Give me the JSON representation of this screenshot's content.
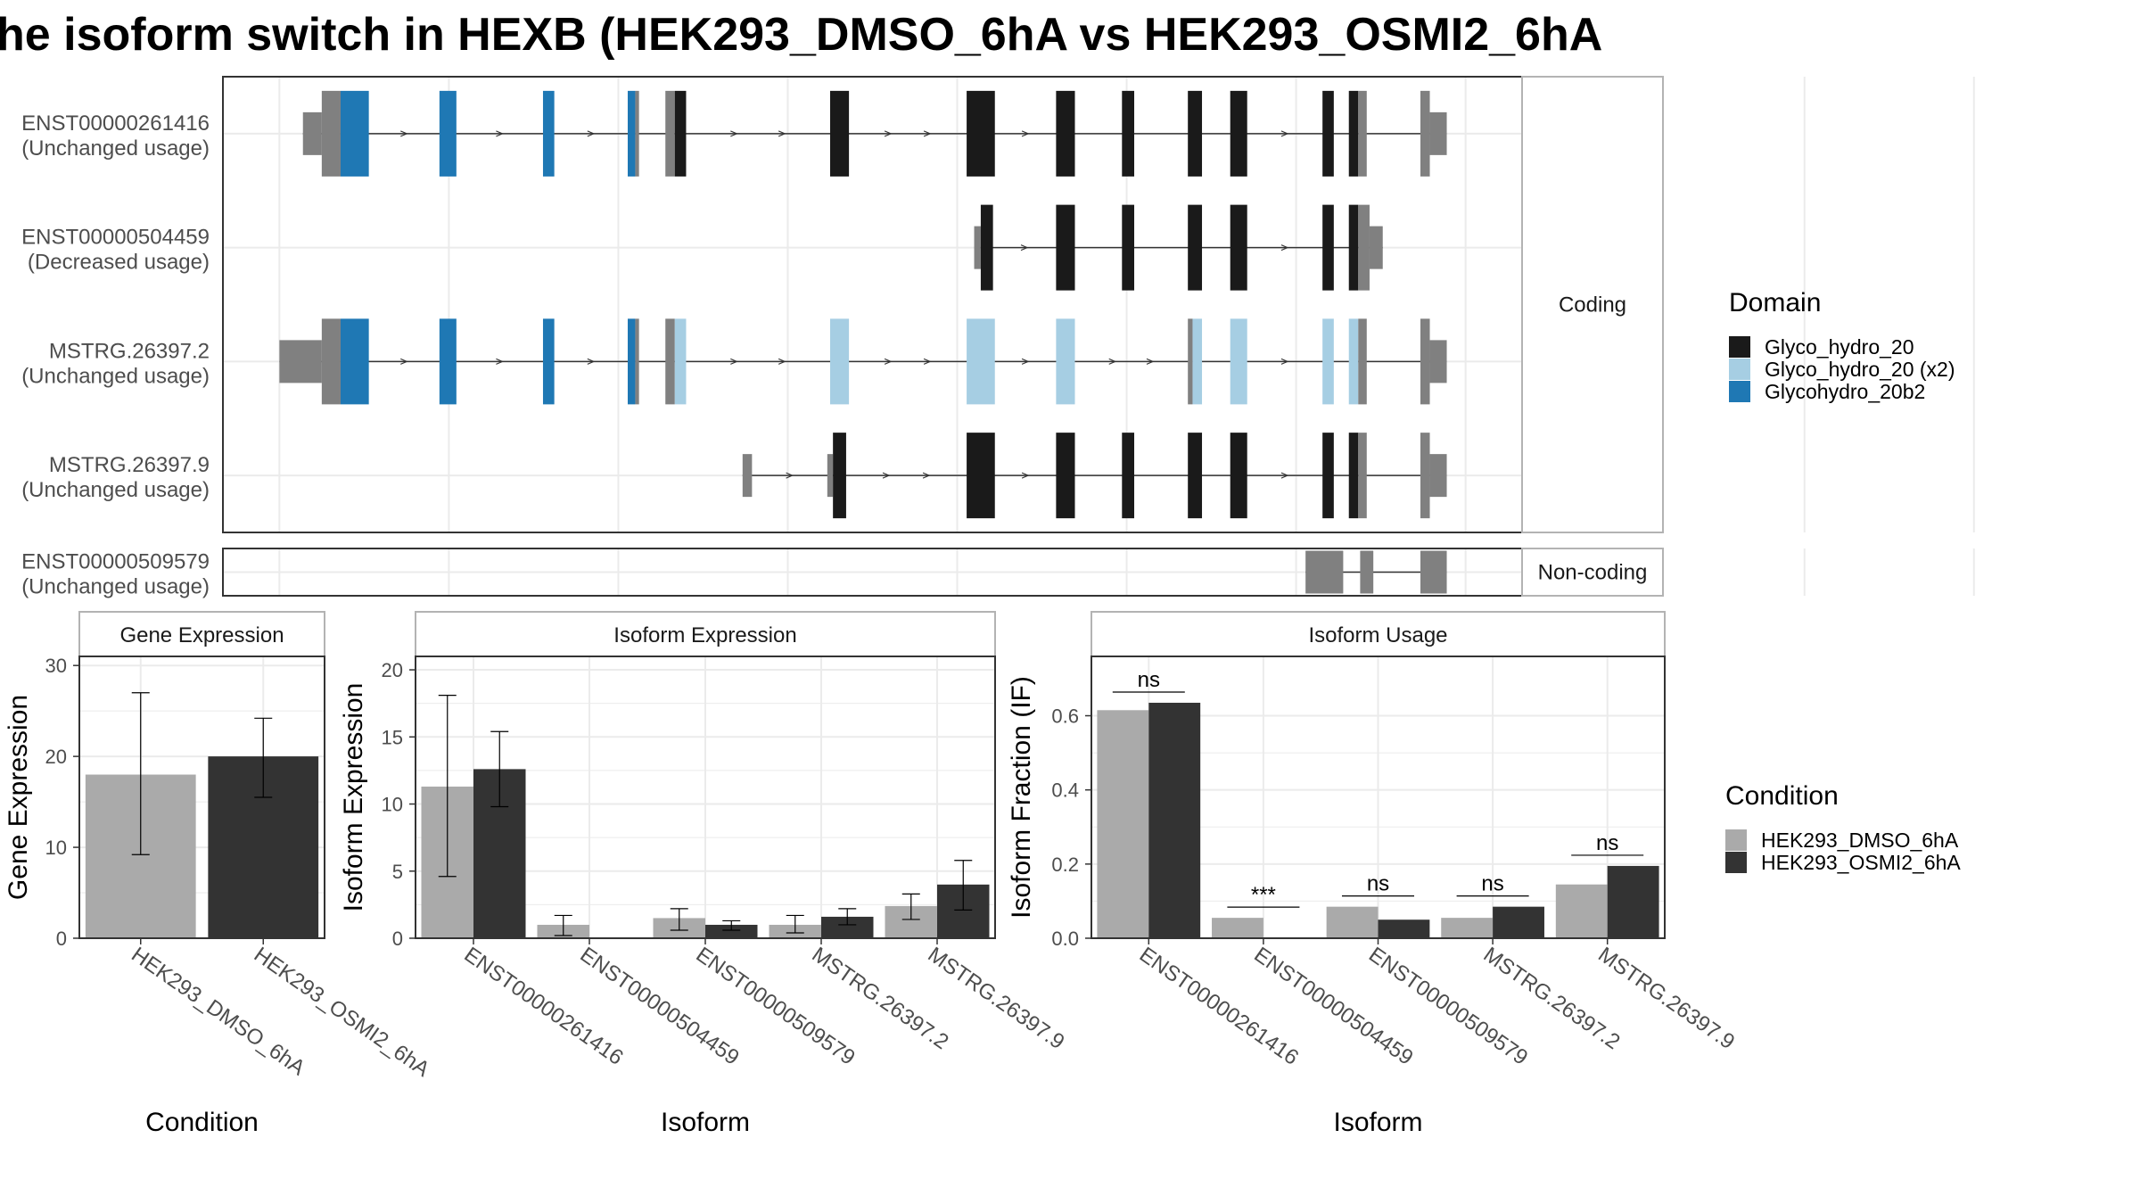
{
  "title": "he isoform switch in HEXB (HEK293_DMSO_6hA vs HEK293_OSMI2_6hA",
  "colors": {
    "glyco_hydro_20": "#1a1a1a",
    "glyco_hydro_20_x2": "#a6cee3",
    "glycohydro_20b2": "#1f78b4",
    "utr_exon": "#808080",
    "condition_dmso": "#aaaaaa",
    "condition_osmi2": "#333333",
    "grid": "#ebebeb",
    "panel_border": "#333333",
    "strip_border": "#b3b3b3",
    "intron": "#333333"
  },
  "structure": {
    "coding_label": "Coding",
    "noncoding_label": "Non-coding",
    "coordinate_breaks": [
      60,
      240,
      420,
      600,
      780,
      960,
      1140,
      1320,
      1500,
      1680,
      1860,
      2040
    ],
    "transcripts": [
      {
        "id": "ENST00000261416",
        "usage": "(Unchanged usage)",
        "group": "coding",
        "exons": [
          {
            "start": 85,
            "end": 105,
            "kind": "utr"
          },
          {
            "start": 105,
            "end": 125,
            "kind": "cds"
          },
          {
            "start": 125,
            "end": 155,
            "kind": "domain3"
          },
          {
            "start": 230,
            "end": 248,
            "kind": "domain3"
          },
          {
            "start": 340,
            "end": 352,
            "kind": "domain3"
          },
          {
            "start": 430,
            "end": 438,
            "kind": "domain3"
          },
          {
            "start": 438,
            "end": 442,
            "kind": "cds"
          },
          {
            "start": 470,
            "end": 480,
            "kind": "cds"
          },
          {
            "start": 480,
            "end": 492,
            "kind": "domain1"
          },
          {
            "start": 645,
            "end": 665,
            "kind": "domain1"
          },
          {
            "start": 790,
            "end": 820,
            "kind": "domain1"
          },
          {
            "start": 885,
            "end": 905,
            "kind": "domain1"
          },
          {
            "start": 955,
            "end": 968,
            "kind": "domain1"
          },
          {
            "start": 1025,
            "end": 1040,
            "kind": "domain1"
          },
          {
            "start": 1070,
            "end": 1088,
            "kind": "domain1"
          },
          {
            "start": 1168,
            "end": 1180,
            "kind": "domain1"
          },
          {
            "start": 1196,
            "end": 1206,
            "kind": "domain1"
          },
          {
            "start": 1206,
            "end": 1215,
            "kind": "cds"
          },
          {
            "start": 1272,
            "end": 1282,
            "kind": "cds"
          },
          {
            "start": 1282,
            "end": 1300,
            "kind": "utr"
          }
        ]
      },
      {
        "id": "ENST00000504459",
        "usage": "(Decreased usage)",
        "group": "coding",
        "exons": [
          {
            "start": 798,
            "end": 805,
            "kind": "utr"
          },
          {
            "start": 805,
            "end": 818,
            "kind": "domain1"
          },
          {
            "start": 885,
            "end": 905,
            "kind": "domain1"
          },
          {
            "start": 955,
            "end": 968,
            "kind": "domain1"
          },
          {
            "start": 1025,
            "end": 1040,
            "kind": "domain1"
          },
          {
            "start": 1070,
            "end": 1088,
            "kind": "domain1"
          },
          {
            "start": 1168,
            "end": 1180,
            "kind": "domain1"
          },
          {
            "start": 1196,
            "end": 1206,
            "kind": "domain1"
          },
          {
            "start": 1206,
            "end": 1218,
            "kind": "cds"
          },
          {
            "start": 1218,
            "end": 1232,
            "kind": "utr"
          }
        ]
      },
      {
        "id": "MSTRG.26397.2",
        "usage": "(Unchanged usage)",
        "group": "coding",
        "exons": [
          {
            "start": 60,
            "end": 105,
            "kind": "utr"
          },
          {
            "start": 105,
            "end": 125,
            "kind": "cds"
          },
          {
            "start": 125,
            "end": 155,
            "kind": "domain3"
          },
          {
            "start": 230,
            "end": 248,
            "kind": "domain3"
          },
          {
            "start": 340,
            "end": 352,
            "kind": "domain3"
          },
          {
            "start": 430,
            "end": 438,
            "kind": "domain3"
          },
          {
            "start": 438,
            "end": 442,
            "kind": "cds"
          },
          {
            "start": 470,
            "end": 480,
            "kind": "cds"
          },
          {
            "start": 480,
            "end": 492,
            "kind": "domain2"
          },
          {
            "start": 645,
            "end": 665,
            "kind": "domain2"
          },
          {
            "start": 790,
            "end": 820,
            "kind": "domain2"
          },
          {
            "start": 885,
            "end": 905,
            "kind": "domain2"
          },
          {
            "start": 1025,
            "end": 1030,
            "kind": "cds"
          },
          {
            "start": 1030,
            "end": 1040,
            "kind": "domain2"
          },
          {
            "start": 1070,
            "end": 1088,
            "kind": "domain2"
          },
          {
            "start": 1168,
            "end": 1180,
            "kind": "domain2"
          },
          {
            "start": 1196,
            "end": 1206,
            "kind": "domain2"
          },
          {
            "start": 1206,
            "end": 1215,
            "kind": "cds"
          },
          {
            "start": 1272,
            "end": 1282,
            "kind": "cds"
          },
          {
            "start": 1282,
            "end": 1300,
            "kind": "utr"
          }
        ]
      },
      {
        "id": "MSTRG.26397.9",
        "usage": "(Unchanged usage)",
        "group": "coding",
        "exons": [
          {
            "start": 552,
            "end": 562,
            "kind": "utr"
          },
          {
            "start": 642,
            "end": 648,
            "kind": "utr"
          },
          {
            "start": 648,
            "end": 662,
            "kind": "domain1"
          },
          {
            "start": 790,
            "end": 820,
            "kind": "domain1"
          },
          {
            "start": 885,
            "end": 905,
            "kind": "domain1"
          },
          {
            "start": 955,
            "end": 968,
            "kind": "domain1"
          },
          {
            "start": 1025,
            "end": 1040,
            "kind": "domain1"
          },
          {
            "start": 1070,
            "end": 1088,
            "kind": "domain1"
          },
          {
            "start": 1168,
            "end": 1180,
            "kind": "domain1"
          },
          {
            "start": 1196,
            "end": 1206,
            "kind": "domain1"
          },
          {
            "start": 1206,
            "end": 1215,
            "kind": "cds"
          },
          {
            "start": 1272,
            "end": 1282,
            "kind": "cds"
          },
          {
            "start": 1282,
            "end": 1300,
            "kind": "utr"
          }
        ]
      },
      {
        "id": "ENST00000509579",
        "usage": "(Unchanged usage)",
        "group": "noncoding",
        "exons": [
          {
            "start": 1150,
            "end": 1190,
            "kind": "utr"
          },
          {
            "start": 1208,
            "end": 1222,
            "kind": "utr"
          },
          {
            "start": 1272,
            "end": 1300,
            "kind": "utr"
          }
        ]
      }
    ]
  },
  "domain_legend": {
    "title": "Domain",
    "items": [
      {
        "label": "Glyco_hydro_20",
        "color": "#1a1a1a"
      },
      {
        "label": "Glyco_hydro_20 (x2)",
        "color": "#a6cee3"
      },
      {
        "label": "Glycohydro_20b2",
        "color": "#1f78b4"
      }
    ]
  },
  "condition_legend": {
    "title": "Condition",
    "items": [
      {
        "label": "HEK293_DMSO_6hA",
        "color": "#aaaaaa"
      },
      {
        "label": "HEK293_OSMI2_6hA",
        "color": "#333333"
      }
    ]
  },
  "chart_data": [
    {
      "type": "bar",
      "title": "Gene Expression",
      "xlabel": "Condition",
      "ylabel": "Gene Expression",
      "categories": [
        "HEK293_DMSO_6hA",
        "HEK293_OSMI2_6hA"
      ],
      "values": [
        18,
        20
      ],
      "errors": [
        [
          9.2,
          27
        ],
        [
          15.5,
          24.2
        ]
      ],
      "ylim": [
        0,
        31
      ],
      "yticks": [
        0,
        10,
        20,
        30
      ]
    },
    {
      "type": "bar",
      "title": "Isoform Expression",
      "xlabel": "Isoform",
      "ylabel": "Isoform Expression",
      "categories": [
        "ENST00000261416",
        "ENST00000504459",
        "ENST00000509579",
        "MSTRG.26397.2",
        "MSTRG.26397.9"
      ],
      "series": [
        {
          "name": "HEK293_DMSO_6hA",
          "values": [
            11.3,
            1.0,
            1.5,
            1.0,
            2.4
          ],
          "errors": [
            [
              4.6,
              18.1
            ],
            [
              0.2,
              1.7
            ],
            [
              0.6,
              2.2
            ],
            [
              0.4,
              1.7
            ],
            [
              1.4,
              3.3
            ]
          ]
        },
        {
          "name": "HEK293_OSMI2_6hA",
          "values": [
            12.6,
            0.0,
            1.0,
            1.6,
            4.0
          ],
          "errors": [
            [
              9.8,
              15.4
            ],
            [
              0,
              0
            ],
            [
              0.6,
              1.3
            ],
            [
              1.0,
              2.2
            ],
            [
              2.1,
              5.8
            ]
          ]
        }
      ],
      "ylim": [
        0,
        21
      ],
      "yticks": [
        0,
        5,
        10,
        15,
        20
      ]
    },
    {
      "type": "bar",
      "title": "Isoform Usage",
      "xlabel": "Isoform",
      "ylabel": "Isoform Fraction (IF)",
      "categories": [
        "ENST00000261416",
        "ENST00000504459",
        "ENST00000509579",
        "MSTRG.26397.2",
        "MSTRG.26397.9"
      ],
      "series": [
        {
          "name": "HEK293_DMSO_6hA",
          "values": [
            0.615,
            0.055,
            0.085,
            0.055,
            0.145
          ]
        },
        {
          "name": "HEK293_OSMI2_6hA",
          "values": [
            0.635,
            0.0,
            0.05,
            0.085,
            0.195
          ]
        }
      ],
      "significance": [
        "ns",
        "***",
        "ns",
        "ns",
        "ns"
      ],
      "ylim": [
        0,
        0.76
      ],
      "yticks": [
        0.0,
        0.2,
        0.4,
        0.6
      ],
      "ytick_labels": [
        "0.0",
        "0.2",
        "0.4",
        "0.6"
      ]
    }
  ]
}
